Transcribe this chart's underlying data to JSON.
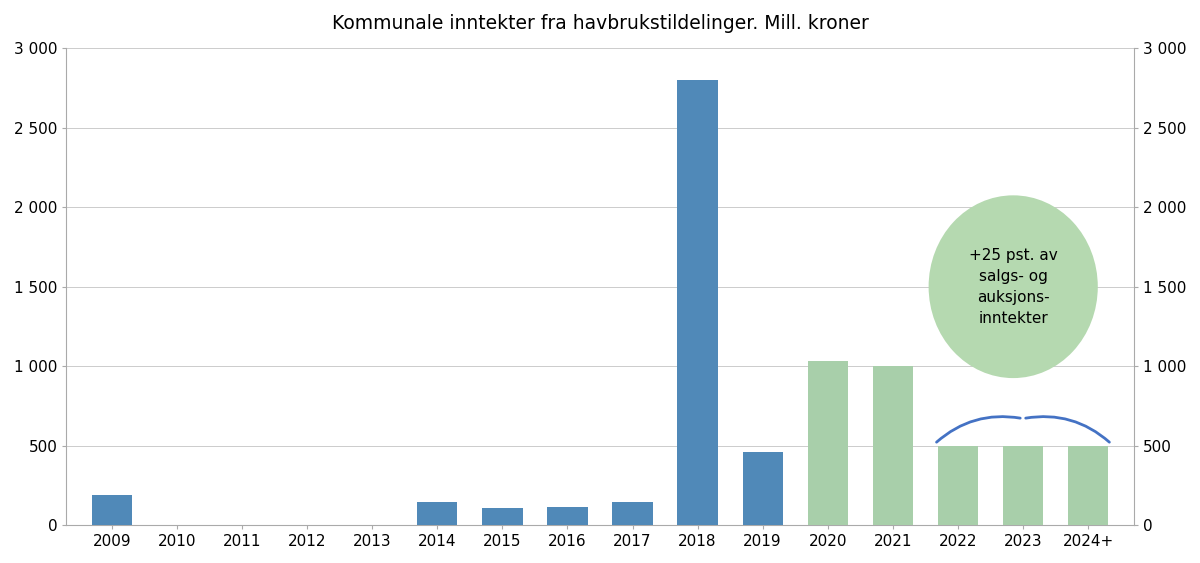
{
  "title": "Kommunale inntekter fra havbrukstildelinger. Mill. kroner",
  "years": [
    "2009",
    "2010",
    "2011",
    "2012",
    "2013",
    "2014",
    "2015",
    "2016",
    "2017",
    "2018",
    "2019",
    "2020",
    "2021",
    "2022",
    "2023",
    "2024+"
  ],
  "values": [
    190,
    0,
    0,
    0,
    0,
    145,
    110,
    115,
    145,
    2800,
    460,
    1030,
    1000,
    500,
    500,
    500
  ],
  "colors": [
    "#5089b8",
    "#5089b8",
    "#5089b8",
    "#5089b8",
    "#5089b8",
    "#5089b8",
    "#5089b8",
    "#5089b8",
    "#5089b8",
    "#5089b8",
    "#5089b8",
    "#a8cfaa",
    "#a8cfaa",
    "#a8cfaa",
    "#a8cfaa",
    "#a8cfaa"
  ],
  "ylim": [
    0,
    3000
  ],
  "yticks": [
    0,
    500,
    1000,
    1500,
    2000,
    2500,
    3000
  ],
  "ytick_labels": [
    "0",
    "500",
    "1 000",
    "1 500",
    "2 000",
    "2 500",
    "3 000"
  ],
  "bubble_text": "+25 pst. av\nsalgs- og\nauksjons-\ninntekter",
  "bubble_color": "#b5d9b0",
  "bubble_text_color": "#000000",
  "bracket_color": "#4472c4",
  "background_color": "#ffffff",
  "grid_color": "#cccccc",
  "spine_color": "#aaaaaa"
}
